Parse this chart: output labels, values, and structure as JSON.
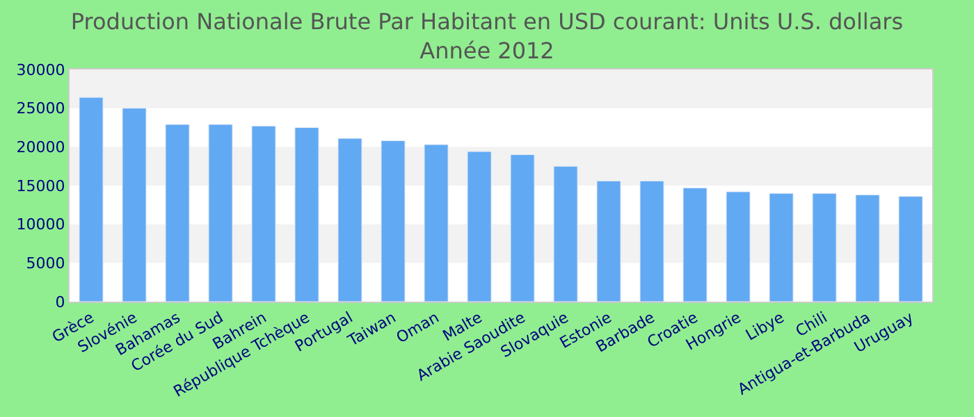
{
  "chart_data": {
    "type": "bar",
    "title": "Production Nationale Brute Par Habitant en USD courant: Units U.S. dollars\nAnnée 2012",
    "categories": [
      "Grèce",
      "Slovénie",
      "Bahamas",
      "Corée du Sud",
      "Bahrein",
      "République Tchèque",
      "Portugal",
      "Taiwan",
      "Oman",
      "Malte",
      "Arabie Saoudite",
      "Slovaquie",
      "Estonie",
      "Barbade",
      "Croatie",
      "Hongrie",
      "Libye",
      "Chili",
      "Antigua-et-Barbuda",
      "Uruguay"
    ],
    "values": [
      26400,
      25000,
      22900,
      22900,
      22700,
      22500,
      21100,
      20800,
      20300,
      19400,
      19000,
      17500,
      15600,
      15600,
      14700,
      14200,
      14000,
      14000,
      13800,
      13600
    ],
    "color": "#62a9f3",
    "ylim": [
      0,
      30000
    ],
    "yticks": [
      0,
      5000,
      10000,
      15000,
      20000,
      25000,
      30000
    ],
    "bands": [
      {
        "axis": "y",
        "from": 5000,
        "to": 10000,
        "color": "#f2f2f2"
      },
      {
        "axis": "y",
        "from": 15000,
        "to": 20000,
        "color": "#f2f2f2"
      },
      {
        "axis": "y",
        "from": 25000,
        "to": 30000,
        "color": "#f2f2f2"
      }
    ],
    "grid": false,
    "legend": false
  }
}
